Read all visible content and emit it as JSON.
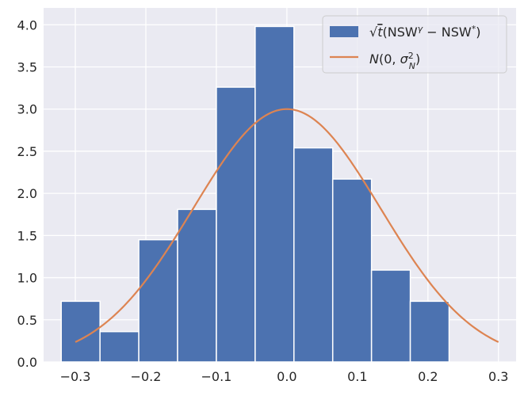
{
  "chart_data": {
    "type": "bar",
    "title": "",
    "xlabel": "",
    "ylabel": "",
    "grid": true,
    "legend_position": "top-right",
    "xlim": [
      -0.345,
      0.325
    ],
    "ylim": [
      0,
      4.2
    ],
    "xticks": [
      -0.3,
      -0.2,
      -0.1,
      0.0,
      0.1,
      0.2,
      0.3
    ],
    "xtick_labels": [
      "−0.3",
      "−0.2",
      "−0.1",
      "0.0",
      "0.1",
      "0.2",
      "0.3"
    ],
    "yticks": [
      0.0,
      0.5,
      1.0,
      1.5,
      2.0,
      2.5,
      3.0,
      3.5,
      4.0
    ],
    "ytick_labels": [
      "0.0",
      "0.5",
      "1.0",
      "1.5",
      "2.0",
      "2.5",
      "3.0",
      "3.5",
      "4.0"
    ],
    "histogram": {
      "bin_edges": [
        -0.32,
        -0.265,
        -0.21,
        -0.155,
        -0.1,
        -0.045,
        0.01,
        0.065,
        0.12,
        0.175,
        0.23
      ],
      "values": [
        0.72,
        0.36,
        1.45,
        1.81,
        3.26,
        3.98,
        2.54,
        2.17,
        1.09,
        0.72
      ],
      "color": "#4c72b0"
    },
    "curve": {
      "type": "normal_pdf",
      "mean": 0.0,
      "peak": 3.0,
      "sigma": 0.133,
      "x_range": [
        -0.3,
        0.3
      ],
      "color": "#dd8452"
    },
    "legend": {
      "entries": [
        {
          "kind": "patch",
          "color": "#4c72b0",
          "label": "√t(NSWᵞ − NSW*)"
        },
        {
          "kind": "line",
          "color": "#dd8452",
          "label": "N(0, σ²ₙ)"
        }
      ]
    },
    "background_color": "#eaeaf2",
    "grid_color": "#ffffff"
  }
}
